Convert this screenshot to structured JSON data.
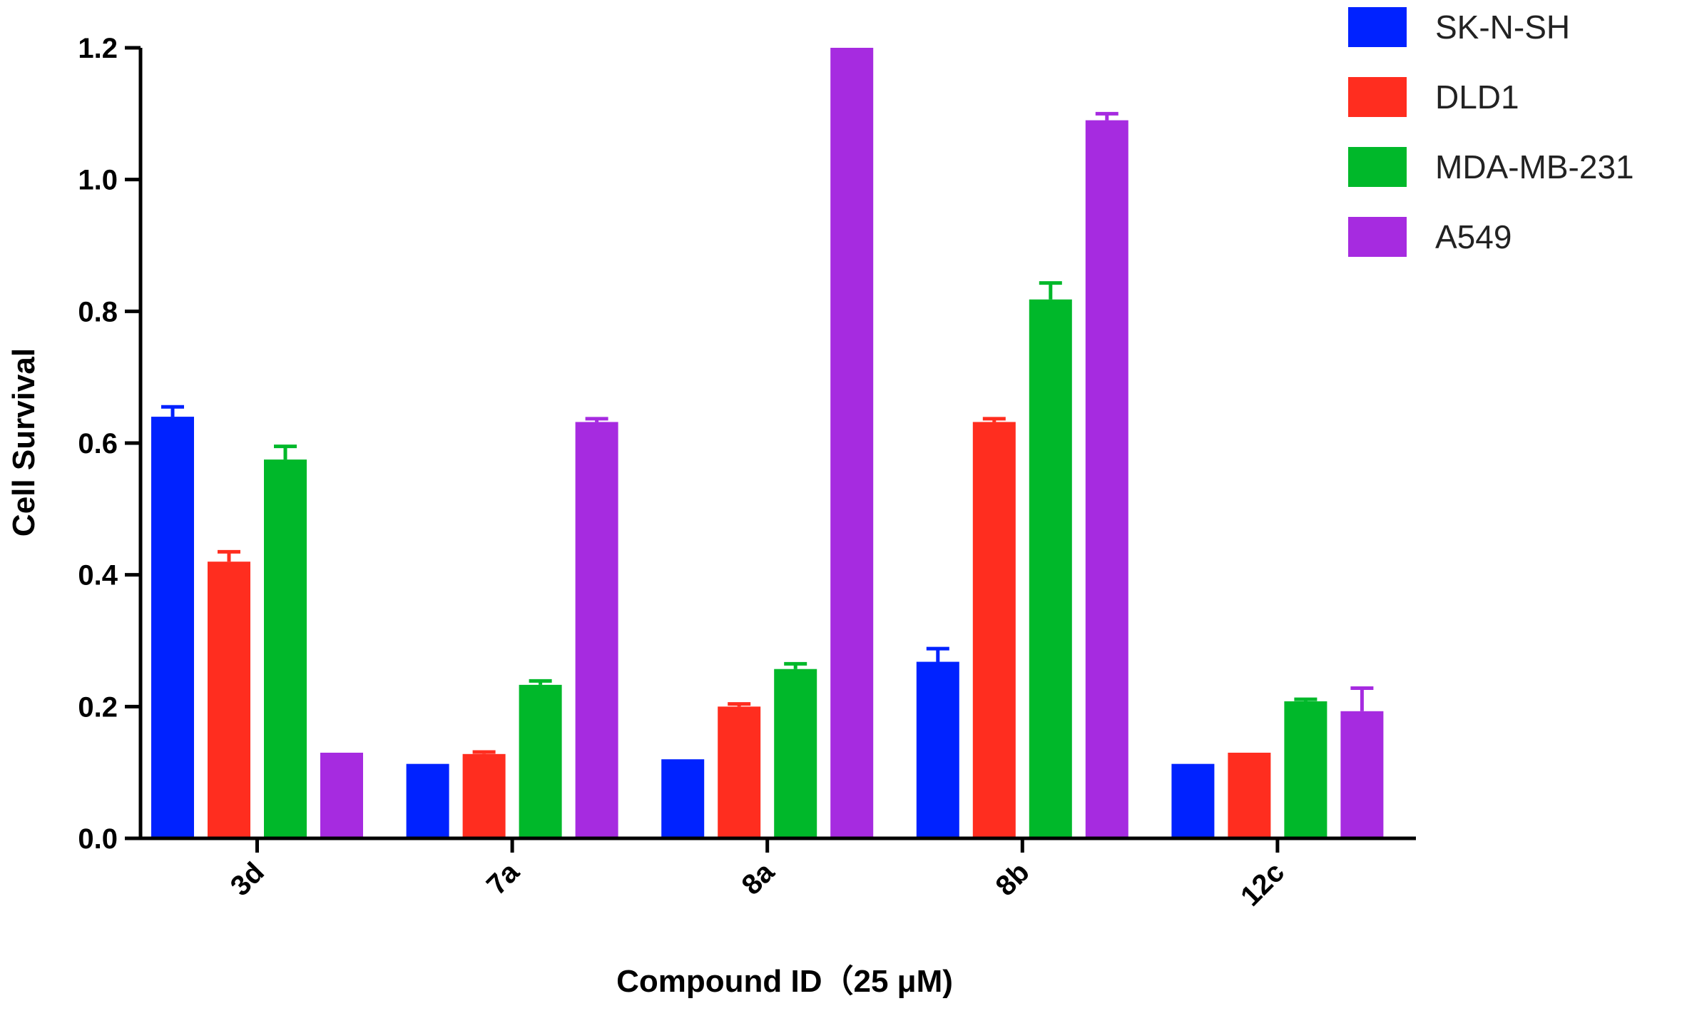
{
  "chart_data": {
    "type": "bar",
    "title": "",
    "xlabel": "Compound ID（25 μM)",
    "ylabel": "Cell Survival",
    "categories": [
      "3d",
      "7a",
      "8a",
      "8b",
      "12c"
    ],
    "ylim": [
      0,
      1.2
    ],
    "yticks": [
      "0.0",
      "0.2",
      "0.4",
      "0.6",
      "0.8",
      "1.0",
      "1.2"
    ],
    "grid": false,
    "legend_position": "top-right",
    "series": [
      {
        "name": "SK-N-SH",
        "color": "#0022ff",
        "values": [
          0.64,
          0.113,
          0.12,
          0.268,
          0.113
        ],
        "errors": [
          0.015,
          0,
          0,
          0.02,
          0
        ]
      },
      {
        "name": "DLD1",
        "color": "#ff2d1f",
        "values": [
          0.42,
          0.128,
          0.2,
          0.632,
          0.13
        ],
        "errors": [
          0.015,
          0.003,
          0.004,
          0.005,
          0
        ]
      },
      {
        "name": "MDA-MB-231",
        "color": "#00b82a",
        "values": [
          0.575,
          0.233,
          0.257,
          0.818,
          0.208
        ],
        "errors": [
          0.02,
          0.006,
          0.008,
          0.025,
          0.003
        ]
      },
      {
        "name": "A549",
        "color": "#a62be0",
        "values": [
          0.13,
          0.632,
          1.2,
          1.09,
          0.193
        ],
        "errors": [
          0,
          0.005,
          0,
          0.01,
          0.035
        ]
      }
    ]
  }
}
